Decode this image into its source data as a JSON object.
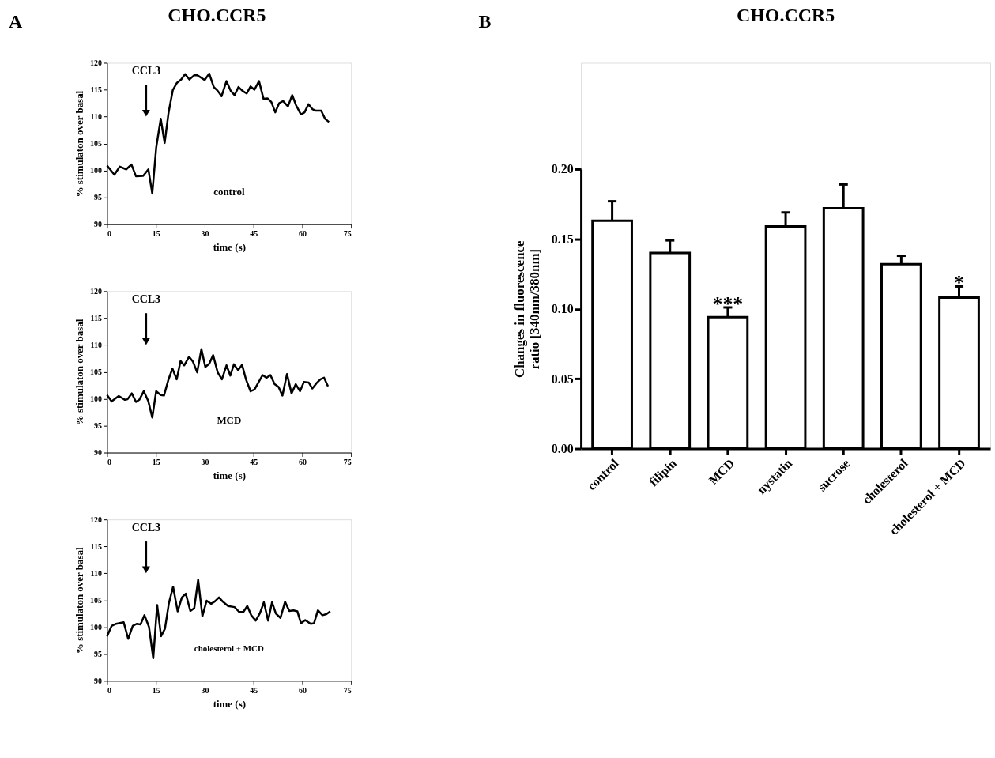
{
  "chart_data": [
    {
      "type": "line",
      "title": "CHO.CCR5",
      "xlabel": "time (s)",
      "ylabel": "% stimulaton over basal",
      "xlim": [
        0,
        75
      ],
      "xticks": [
        0,
        15,
        30,
        45,
        60,
        75
      ],
      "ylim": [
        90,
        120
      ],
      "yticks": [
        90,
        95,
        100,
        105,
        110,
        115,
        120
      ],
      "grid": false,
      "annotations": [
        "A",
        "CCL3",
        "control"
      ],
      "series": [
        {
          "color": "#000000",
          "x": [
            0,
            2.25,
            3.9,
            5.9,
            7.5,
            8.9,
            11.1,
            12.7,
            13.9,
            15.1,
            16.5,
            17.7,
            18.9,
            20.2,
            21.5,
            22.8,
            24.0,
            25.3,
            26.8,
            27.7,
            30.0,
            31.4,
            32.8,
            34.0,
            35.2,
            36.7,
            38.0,
            39.2,
            40.4,
            41.6,
            42.9,
            44.1,
            45.3,
            46.7,
            48.1,
            49.3,
            50.5,
            51.7,
            52.9,
            54.1,
            55.6,
            56.9,
            58.1,
            59.6,
            60.7,
            61.9,
            63.1,
            64.2,
            65.8,
            67.0,
            68.2
          ],
          "values": [
            100.9,
            99.2,
            100.7,
            100.2,
            101.1,
            98.9,
            99.0,
            100.2,
            95.7,
            104.2,
            109.6,
            105.1,
            110.7,
            114.9,
            116.3,
            116.9,
            117.9,
            116.9,
            117.7,
            117.7,
            116.8,
            118.0,
            115.5,
            114.8,
            113.8,
            116.6,
            114.8,
            114.0,
            115.5,
            114.8,
            114.3,
            115.6,
            115.0,
            116.6,
            113.3,
            113.4,
            112.7,
            110.8,
            112.5,
            112.9,
            111.9,
            114.0,
            112.1,
            110.4,
            110.8,
            112.3,
            111.4,
            111.1,
            111.1,
            109.6,
            109.0
          ]
        }
      ]
    },
    {
      "type": "line",
      "xlabel": "time (s)",
      "ylabel": "% stimulaton over basal",
      "xlim": [
        0,
        75
      ],
      "xticks": [
        0,
        15,
        30,
        45,
        60,
        75
      ],
      "ylim": [
        90,
        120
      ],
      "yticks": [
        90,
        95,
        100,
        105,
        110,
        115,
        120
      ],
      "grid": false,
      "annotations": [
        "CCL3",
        "MCD"
      ],
      "series": [
        {
          "color": "#000000",
          "x": [
            0,
            1.4,
            3.6,
            5.5,
            6.3,
            7.6,
            8.9,
            9.9,
            11.3,
            12.7,
            13.9,
            15.1,
            16.5,
            17.5,
            18.9,
            20.1,
            21.4,
            22.6,
            23.7,
            25.2,
            26.4,
            27.7,
            29.0,
            30.2,
            31.4,
            32.6,
            34.0,
            35.3,
            36.7,
            37.9,
            39.0,
            40.3,
            41.5,
            42.7,
            44.1,
            45.3,
            46.5,
            47.8,
            49.0,
            50.2,
            51.5,
            52.7,
            53.9,
            55.3,
            56.7,
            58.0,
            59.3,
            60.5,
            62.0,
            63.1,
            64.4,
            65.6,
            66.7,
            67.9
          ],
          "values": [
            100.7,
            99.5,
            100.5,
            99.8,
            99.9,
            101.0,
            99.4,
            99.8,
            101.4,
            99.5,
            96.5,
            101.4,
            100.7,
            100.6,
            103.6,
            105.6,
            103.6,
            107.0,
            106.2,
            107.8,
            106.9,
            104.9,
            109.2,
            105.9,
            106.5,
            108.1,
            104.9,
            103.6,
            106.2,
            104.3,
            106.4,
            105.3,
            106.3,
            103.6,
            101.4,
            101.7,
            103.0,
            104.4,
            103.9,
            104.4,
            102.7,
            102.2,
            100.6,
            104.6,
            101.0,
            102.7,
            101.4,
            103.1,
            103.0,
            101.9,
            102.9,
            103.6,
            103.9,
            102.3
          ]
        }
      ]
    },
    {
      "type": "line",
      "xlabel": "time (s)",
      "ylabel": "% stimulaton over basal",
      "xlim": [
        0,
        75
      ],
      "xticks": [
        0,
        15,
        30,
        45,
        60,
        75
      ],
      "ylim": [
        90,
        120
      ],
      "yticks": [
        90,
        95,
        100,
        105,
        110,
        115,
        120
      ],
      "grid": false,
      "annotations": [
        "CCL3",
        "cholesterol + MCD"
      ],
      "series": [
        {
          "color": "#000000",
          "x": [
            0,
            1.4,
            2.8,
            5.1,
            6.5,
            7.9,
            9.1,
            10.3,
            11.5,
            12.9,
            14.2,
            15.4,
            16.6,
            17.8,
            19.0,
            20.3,
            21.7,
            23.0,
            24.2,
            25.6,
            26.8,
            28.0,
            29.3,
            30.6,
            32.0,
            33.2,
            34.4,
            35.6,
            37.2,
            39.2,
            40.6,
            41.9,
            43.1,
            44.3,
            45.7,
            47.0,
            48.2,
            49.5,
            50.7,
            51.9,
            53.3,
            54.7,
            56.0,
            57.3,
            58.5,
            59.6,
            60.9,
            62.6,
            63.6,
            64.8,
            66.2,
            67.4,
            68.6
          ],
          "values": [
            98.3,
            100.2,
            100.6,
            100.9,
            97.8,
            100.2,
            100.6,
            100.5,
            102.2,
            100.0,
            94.2,
            104.1,
            98.3,
            99.7,
            104.4,
            107.5,
            102.9,
            105.5,
            106.2,
            103.0,
            103.5,
            108.8,
            102.0,
            104.9,
            104.3,
            104.8,
            105.5,
            104.7,
            103.9,
            103.7,
            102.8,
            102.8,
            103.9,
            102.2,
            101.2,
            102.6,
            104.6,
            101.2,
            104.6,
            102.5,
            101.7,
            104.7,
            103.0,
            103.1,
            102.9,
            100.7,
            101.3,
            100.6,
            100.7,
            103.1,
            102.2,
            102.4,
            102.9
          ]
        }
      ]
    },
    {
      "type": "bar",
      "title": "CHO.CCR5",
      "ylabel": "Changes in fluorescence\nratio [340nm/380nm]",
      "ylim": [
        0,
        0.2
      ],
      "yticks": [
        {
          "value": 0,
          "label": "0.00"
        },
        {
          "value": 0.05,
          "label": "0.05"
        },
        {
          "value": 0.1,
          "label": "0.10"
        },
        {
          "value": 0.15,
          "label": "0.15"
        },
        {
          "value": 0.2,
          "label": "0.20"
        }
      ],
      "grid": false,
      "categories": [
        "control",
        "filipin",
        "MCD",
        "nystatin",
        "sucrose",
        "cholesterol",
        "cholesterol + MCD"
      ],
      "annotations": [
        "B",
        {
          "text": "***",
          "x": "MCD",
          "y": 0.104
        },
        {
          "text": "*",
          "x": "cholesterol + MCD",
          "y": 0.119
        }
      ],
      "series": [
        {
          "color": "#ffffff",
          "values": [
            0.163,
            0.14,
            0.094,
            0.159,
            0.172,
            0.132,
            0.108
          ],
          "errors": [
            [
              0.163,
              0.177
            ],
            [
              0.14,
              0.149
            ],
            [
              0.094,
              0.101
            ],
            [
              0.159,
              0.169
            ],
            [
              0.172,
              0.189
            ],
            [
              0.132,
              0.138
            ],
            [
              0.108,
              0.116
            ]
          ]
        }
      ]
    }
  ]
}
